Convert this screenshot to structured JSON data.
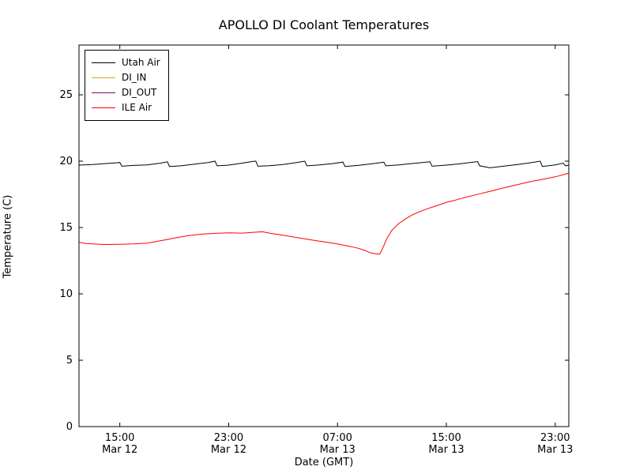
{
  "figure": {
    "title": "APOLLO DI Coolant Temperatures"
  },
  "chart_data": {
    "type": "line",
    "title": "APOLLO DI Coolant Temperatures",
    "xlabel": "Date (GMT)",
    "ylabel": "Temperature (C)",
    "x_unit": "hours since Mar 12 12:00 GMT",
    "xlim": [
      0,
      36
    ],
    "ylim": [
      0,
      28.75
    ],
    "yticks": [
      0,
      5,
      10,
      15,
      20,
      25
    ],
    "xticks": [
      {
        "pos": 3,
        "time": "15:00",
        "date": "Mar 12"
      },
      {
        "pos": 11,
        "time": "23:00",
        "date": "Mar 12"
      },
      {
        "pos": 19,
        "time": "07:00",
        "date": "Mar 13"
      },
      {
        "pos": 27,
        "time": "15:00",
        "date": "Mar 13"
      },
      {
        "pos": 35,
        "time": "23:00",
        "date": "Mar 13"
      }
    ],
    "grid": false,
    "legend_position": "upper left",
    "series": [
      {
        "name": "Utah Air",
        "color": "#000000",
        "points": [
          [
            0,
            19.7
          ],
          [
            1,
            19.75
          ],
          [
            2,
            19.82
          ],
          [
            2.8,
            19.88
          ],
          [
            3,
            19.9
          ],
          [
            3.15,
            19.62
          ],
          [
            4,
            19.68
          ],
          [
            5,
            19.72
          ],
          [
            6,
            19.85
          ],
          [
            6.5,
            19.95
          ],
          [
            6.65,
            19.6
          ],
          [
            7.5,
            19.65
          ],
          [
            8.5,
            19.78
          ],
          [
            9.5,
            19.9
          ],
          [
            10,
            20.0
          ],
          [
            10.15,
            19.65
          ],
          [
            11,
            19.7
          ],
          [
            12,
            19.85
          ],
          [
            12.8,
            19.98
          ],
          [
            13,
            20.0
          ],
          [
            13.15,
            19.62
          ],
          [
            14,
            19.66
          ],
          [
            15,
            19.75
          ],
          [
            16,
            19.9
          ],
          [
            16.6,
            20.0
          ],
          [
            16.75,
            19.65
          ],
          [
            17.5,
            19.7
          ],
          [
            18.5,
            19.8
          ],
          [
            19.4,
            19.93
          ],
          [
            19.55,
            19.6
          ],
          [
            20.5,
            19.68
          ],
          [
            21.5,
            19.8
          ],
          [
            22.4,
            19.92
          ],
          [
            22.55,
            19.65
          ],
          [
            23.5,
            19.72
          ],
          [
            24.5,
            19.82
          ],
          [
            25.8,
            19.95
          ],
          [
            25.95,
            19.62
          ],
          [
            27,
            19.7
          ],
          [
            28,
            19.8
          ],
          [
            29.3,
            19.97
          ],
          [
            29.45,
            19.65
          ],
          [
            30.2,
            19.5
          ],
          [
            31,
            19.6
          ],
          [
            32,
            19.72
          ],
          [
            33,
            19.85
          ],
          [
            33.9,
            20.0
          ],
          [
            34.05,
            19.6
          ],
          [
            35,
            19.72
          ],
          [
            35.6,
            19.85
          ],
          [
            35.75,
            19.65
          ],
          [
            36,
            19.7
          ]
        ]
      },
      {
        "name": "DI_IN",
        "color": "#daa520",
        "points": []
      },
      {
        "name": "DI_OUT",
        "color": "#800080",
        "points": []
      },
      {
        "name": "ILE Air",
        "color": "#ff0000",
        "points": [
          [
            0,
            13.9
          ],
          [
            0.5,
            13.8
          ],
          [
            1,
            13.76
          ],
          [
            2,
            13.72
          ],
          [
            3,
            13.73
          ],
          [
            4,
            13.76
          ],
          [
            5,
            13.82
          ],
          [
            6,
            14.0
          ],
          [
            7,
            14.2
          ],
          [
            8,
            14.38
          ],
          [
            9,
            14.5
          ],
          [
            10,
            14.56
          ],
          [
            11,
            14.6
          ],
          [
            12,
            14.58
          ],
          [
            13,
            14.65
          ],
          [
            13.5,
            14.68
          ],
          [
            14,
            14.58
          ],
          [
            15,
            14.42
          ],
          [
            16,
            14.25
          ],
          [
            17,
            14.08
          ],
          [
            18,
            13.92
          ],
          [
            19,
            13.76
          ],
          [
            19.5,
            13.66
          ],
          [
            20,
            13.56
          ],
          [
            20.5,
            13.44
          ],
          [
            21,
            13.28
          ],
          [
            21.4,
            13.1
          ],
          [
            21.8,
            13.02
          ],
          [
            22.1,
            13.0
          ],
          [
            22.3,
            13.4
          ],
          [
            22.6,
            14.1
          ],
          [
            23,
            14.8
          ],
          [
            23.5,
            15.3
          ],
          [
            24,
            15.65
          ],
          [
            24.5,
            15.95
          ],
          [
            25,
            16.18
          ],
          [
            25.5,
            16.38
          ],
          [
            26,
            16.55
          ],
          [
            26.5,
            16.72
          ],
          [
            27,
            16.9
          ],
          [
            27.5,
            17.02
          ],
          [
            28,
            17.16
          ],
          [
            28.5,
            17.3
          ],
          [
            29,
            17.42
          ],
          [
            29.5,
            17.55
          ],
          [
            30,
            17.68
          ],
          [
            30.5,
            17.8
          ],
          [
            31,
            17.94
          ],
          [
            31.5,
            18.06
          ],
          [
            32,
            18.18
          ],
          [
            32.5,
            18.3
          ],
          [
            33,
            18.42
          ],
          [
            33.5,
            18.52
          ],
          [
            34,
            18.62
          ],
          [
            34.5,
            18.72
          ],
          [
            35,
            18.82
          ],
          [
            35.5,
            18.95
          ],
          [
            36,
            19.1
          ]
        ]
      }
    ]
  }
}
